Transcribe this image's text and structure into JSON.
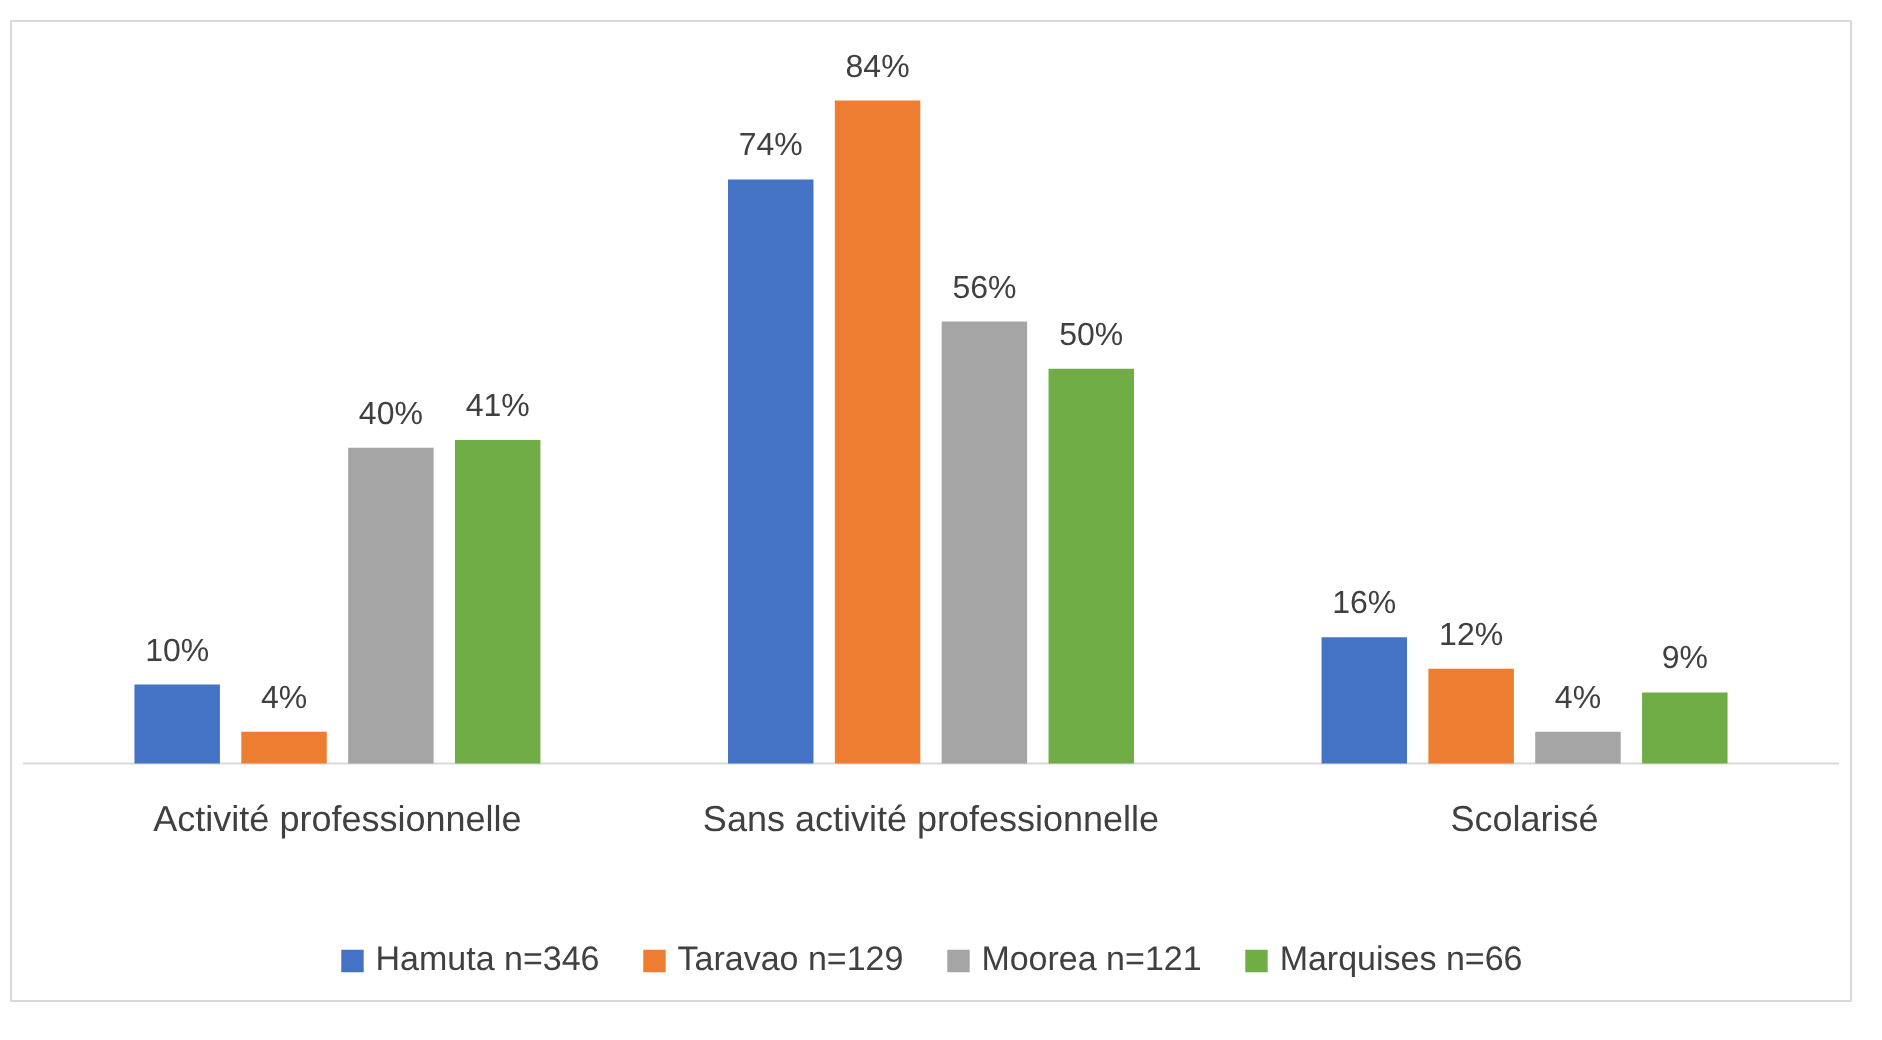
{
  "chart_data": {
    "type": "bar",
    "categories": [
      "Activité professionnelle",
      "Sans activité professionnelle",
      "Scolarisé"
    ],
    "series": [
      {
        "name": "Hamuta n=346",
        "color": "#4472c4",
        "values": [
          10,
          74,
          16
        ],
        "value_labels": [
          "10%",
          "74%",
          "16%"
        ]
      },
      {
        "name": "Taravao n=129",
        "color": "#ed7d31",
        "values": [
          4,
          84,
          12
        ],
        "value_labels": [
          "4%",
          "84%",
          "12%"
        ]
      },
      {
        "name": "Moorea n=121",
        "color": "#a5a5a5",
        "values": [
          40,
          56,
          4
        ],
        "value_labels": [
          "40%",
          "56%",
          "4%"
        ]
      },
      {
        "name": "Marquises n=66",
        "color": "#70ad47",
        "values": [
          41,
          50,
          9
        ],
        "value_labels": [
          "41%",
          "50%",
          "9%"
        ]
      }
    ],
    "legend": "bottom"
  }
}
